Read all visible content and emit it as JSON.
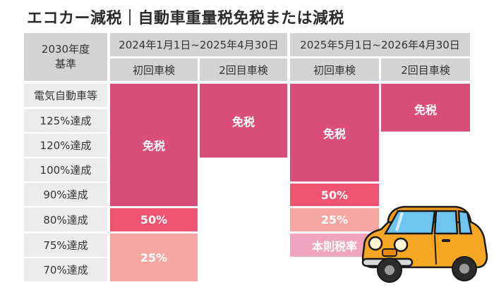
{
  "title": "エコカー減税｜自動車重量税免税または減税",
  "header": {
    "corner_line1": "2030年度",
    "corner_line2": "基準",
    "period1": "2024年1月1日~2025年4月30日",
    "period2": "2025年5月1日~2026年4月30日",
    "first_inspection": "初回車検",
    "second_inspection": "2回目車検"
  },
  "rows": [
    "電気自動車等",
    "125%達成",
    "120%達成",
    "100%達成",
    "90%達成",
    "80%達成",
    "75%達成",
    "70%達成"
  ],
  "cells": {
    "p1_first_exempt": "免税",
    "p1_first_50": "50%",
    "p1_first_25": "25%",
    "p1_second_exempt": "免税",
    "p2_first_exempt": "免税",
    "p2_first_50": "50%",
    "p2_first_25": "25%",
    "p2_first_base": "本則税率",
    "p2_second_exempt": "免税"
  },
  "colors": {
    "exempt": "#d94f7a",
    "reduction_50": "#ef5472",
    "reduction_25": "#f6a6a2",
    "standard_rate": "#f0a4bf",
    "header_bg": "#d3d3d3",
    "row_label_bg": "#ececec"
  },
  "illustration": "orange-compact-car-icon"
}
